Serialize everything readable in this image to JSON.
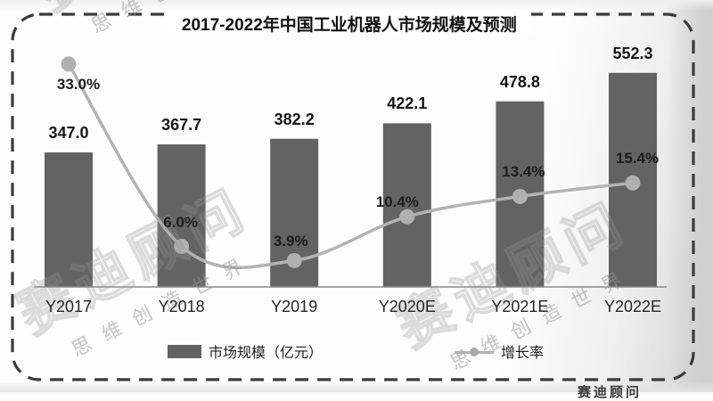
{
  "title": "2017-2022年中国工业机器人市场规模及预测",
  "legend": {
    "bars": "市场规模（亿元）",
    "line": "增长率"
  },
  "watermark": {
    "primary": "赛迪顾问",
    "secondary": "思维创造世界"
  },
  "footer_fragment": "赛迪顾问",
  "colors": {
    "bar": "#636363",
    "line": "#b3b3b3",
    "marker": "#b0b0b0",
    "axis": "#8a8a8a",
    "dashed_border": "#3b3b3b",
    "label_text": "#161616"
  },
  "chart_data": {
    "type": "bar",
    "subtype": "bar+line combo",
    "title": "2017-2022年中国工业机器人市场规模及预测",
    "categories": [
      "Y2017",
      "Y2018",
      "Y2019",
      "Y2020E",
      "Y2021E",
      "Y2022E"
    ],
    "series": [
      {
        "name": "市场规模（亿元）",
        "type": "bar",
        "values": [
          347.0,
          367.7,
          382.2,
          422.1,
          478.8,
          552.3
        ]
      },
      {
        "name": "增长率",
        "type": "line",
        "unit": "%",
        "values": [
          33.0,
          6.0,
          3.9,
          10.4,
          13.4,
          15.4
        ]
      }
    ],
    "xlabel": "",
    "ylabel_left": "市场规模（亿元）",
    "ylabel_right": "增长率(%)",
    "ylim_left_estimated": [
      0,
      740
    ],
    "ylim_right_estimated": [
      0,
      42
    ],
    "grid": false,
    "axes_ticks_hidden": true,
    "legend_position": "bottom",
    "data_labels": true
  }
}
